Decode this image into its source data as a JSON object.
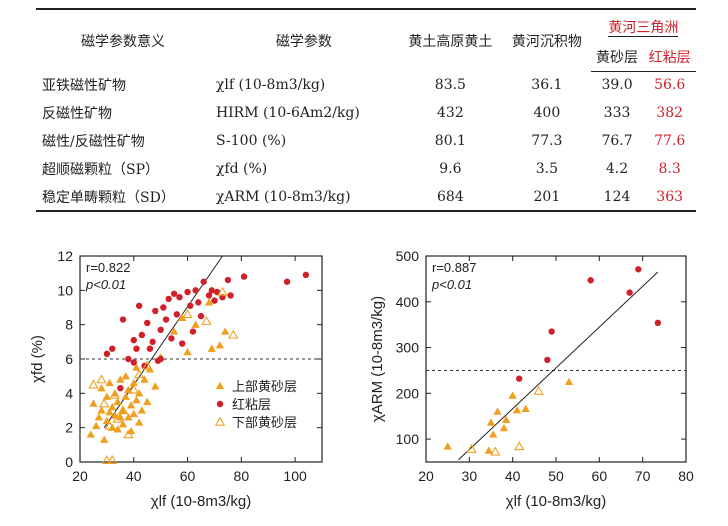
{
  "table": {
    "headers": {
      "meaning": "磁学参数意义",
      "param": "磁学参数",
      "loess": "黄土高原黄土",
      "river": "黄河沉积物",
      "delta": "黄河三角洲",
      "sand": "黄砂层",
      "clay": "红粘层"
    },
    "rows": [
      {
        "meaning": "亚铁磁性矿物",
        "param": "χlf (10-8m3/kg)",
        "loess": "83.5",
        "river": "36.1",
        "sand": "39.0",
        "clay": "56.6"
      },
      {
        "meaning": "反磁性矿物",
        "param": "HIRM (10-6Am2/kg)",
        "loess": "432",
        "river": "400",
        "sand": "333",
        "clay": "382"
      },
      {
        "meaning": "磁性/反磁性矿物",
        "param": "S-100 (%)",
        "loess": "80.1",
        "river": "77.3",
        "sand": "76.7",
        "clay": "77.6"
      },
      {
        "meaning": "超顺磁颗粒（SP）",
        "param": "χfd (%)",
        "loess": "9.6",
        "river": "3.5",
        "sand": "4.2",
        "clay": "8.3"
      },
      {
        "meaning": "稳定单畴颗粒（SD）",
        "param": "χARM (10-8m3/kg)",
        "loess": "684",
        "river": "201",
        "sand": "124",
        "clay": "363"
      }
    ],
    "colors": {
      "highlight": "#d0202a"
    }
  },
  "chart_data": [
    {
      "type": "scatter",
      "xlabel": "χlf (10-8m3/kg)",
      "ylabel": "χfd (%)",
      "xlim": [
        20,
        110
      ],
      "ylim": [
        0,
        12
      ],
      "xticks": [
        "20",
        "40",
        "60",
        "80",
        "100"
      ],
      "yticks": [
        "0",
        "2",
        "4",
        "6",
        "8",
        "10",
        "12"
      ],
      "annotations": [
        "r=0.822",
        "p<0.01"
      ],
      "reference_line": {
        "y": 6,
        "style": "dashed"
      },
      "trend_line": [
        [
          29,
          2.0
        ],
        [
          73,
          12.0
        ]
      ],
      "legend_position": "lower-right",
      "series": [
        {
          "name": "上部黄砂层",
          "marker": "triangle-filled",
          "color": "#f0a020",
          "points": [
            [
              24,
              1.6
            ],
            [
              25,
              3.4
            ],
            [
              26,
              2.1
            ],
            [
              27,
              2.6
            ],
            [
              28,
              3.0
            ],
            [
              28,
              4.3
            ],
            [
              29,
              1.3
            ],
            [
              30,
              2.4
            ],
            [
              30,
              3.8
            ],
            [
              31,
              2.9
            ],
            [
              31,
              4.6
            ],
            [
              32,
              2.0
            ],
            [
              32,
              3.2
            ],
            [
              33,
              2.7
            ],
            [
              33,
              4.0
            ],
            [
              34,
              1.9
            ],
            [
              34,
              3.5
            ],
            [
              35,
              2.6
            ],
            [
              35,
              4.8
            ],
            [
              36,
              3.0
            ],
            [
              36,
              2.2
            ],
            [
              37,
              3.8
            ],
            [
              37,
              5.0
            ],
            [
              38,
              2.6
            ],
            [
              38,
              4.2
            ],
            [
              39,
              3.3
            ],
            [
              39,
              1.8
            ],
            [
              40,
              2.8
            ],
            [
              40,
              4.6
            ],
            [
              41,
              3.6
            ],
            [
              41,
              5.5
            ],
            [
              42,
              2.3
            ],
            [
              42,
              4.0
            ],
            [
              43,
              3.0
            ],
            [
              44,
              4.8
            ],
            [
              45,
              3.5
            ],
            [
              46,
              5.4
            ],
            [
              48,
              4.4
            ],
            [
              50,
              6.1
            ],
            [
              55,
              7.6
            ],
            [
              58,
              8.4
            ],
            [
              60,
              6.4
            ],
            [
              63,
              8.0
            ],
            [
              68,
              9.3
            ],
            [
              69,
              6.6
            ],
            [
              72,
              6.8
            ],
            [
              74,
              7.6
            ]
          ]
        },
        {
          "name": "红粘层",
          "marker": "circle-filled",
          "color": "#d0202a",
          "points": [
            [
              30,
              6.3
            ],
            [
              32,
              6.6
            ],
            [
              35,
              4.3
            ],
            [
              36,
              8.3
            ],
            [
              38,
              6.0
            ],
            [
              40,
              5.8
            ],
            [
              40,
              7.1
            ],
            [
              41,
              6.6
            ],
            [
              42,
              9.1
            ],
            [
              43,
              7.4
            ],
            [
              44,
              5.6
            ],
            [
              45,
              8.1
            ],
            [
              46,
              6.6
            ],
            [
              47,
              7.0
            ],
            [
              48,
              8.8
            ],
            [
              49,
              5.9
            ],
            [
              50,
              7.7
            ],
            [
              50,
              6.0
            ],
            [
              51,
              9.0
            ],
            [
              52,
              8.3
            ],
            [
              53,
              9.5
            ],
            [
              54,
              7.2
            ],
            [
              55,
              9.8
            ],
            [
              56,
              8.6
            ],
            [
              57,
              9.6
            ],
            [
              58,
              6.9
            ],
            [
              60,
              9.9
            ],
            [
              61,
              9.1
            ],
            [
              62,
              7.6
            ],
            [
              63,
              10.0
            ],
            [
              64,
              9.3
            ],
            [
              65,
              8.5
            ],
            [
              66,
              10.5
            ],
            [
              68,
              9.7
            ],
            [
              69,
              10.0
            ],
            [
              70,
              9.4
            ],
            [
              71,
              9.9
            ],
            [
              73,
              9.6
            ],
            [
              75,
              10.6
            ],
            [
              76,
              9.7
            ],
            [
              81,
              10.8
            ],
            [
              97,
              10.5
            ],
            [
              104,
              10.9
            ]
          ]
        },
        {
          "name": "下部黄砂层",
          "marker": "triangle-open",
          "color": "#f0a020",
          "points": [
            [
              25,
              4.5
            ],
            [
              28,
              4.8
            ],
            [
              29,
              3.4
            ],
            [
              30,
              0.1
            ],
            [
              31,
              2.1
            ],
            [
              32,
              0.1
            ],
            [
              33,
              3.9
            ],
            [
              34,
              2.5
            ],
            [
              36,
              3.0
            ],
            [
              38,
              1.6
            ],
            [
              40,
              4.2
            ],
            [
              42,
              5.1
            ],
            [
              45,
              5.6
            ],
            [
              60,
              8.6
            ],
            [
              67,
              8.2
            ],
            [
              77,
              7.4
            ],
            [
              73,
              9.9
            ]
          ]
        }
      ]
    },
    {
      "type": "scatter",
      "xlabel": "χlf (10-8m3/kg)",
      "ylabel": "χARM (10-8m3/kg)",
      "xlim": [
        20,
        80
      ],
      "ylim": [
        50,
        500
      ],
      "xticks": [
        "20",
        "30",
        "40",
        "50",
        "60",
        "70",
        "80"
      ],
      "yticks": [
        "100",
        "200",
        "300",
        "400",
        "500"
      ],
      "annotations": [
        "r=0.887",
        "p<0.01"
      ],
      "reference_line": {
        "y": 250,
        "style": "dashed"
      },
      "trend_line": [
        [
          27.5,
          55
        ],
        [
          73.5,
          465
        ]
      ],
      "series": [
        {
          "name": "上部黄砂层",
          "marker": "triangle-filled",
          "color": "#f0a020",
          "points": [
            [
              25,
              84
            ],
            [
              34.5,
              75
            ],
            [
              35,
              136
            ],
            [
              35.5,
              110
            ],
            [
              36.5,
              160
            ],
            [
              38,
              124
            ],
            [
              38.5,
              142
            ],
            [
              40,
              195
            ],
            [
              41,
              163
            ],
            [
              43,
              166
            ],
            [
              53,
              225
            ]
          ]
        },
        {
          "name": "红粘层",
          "marker": "circle-filled",
          "color": "#d0202a",
          "points": [
            [
              41.5,
              232
            ],
            [
              48,
              273
            ],
            [
              49,
              335
            ],
            [
              58,
              447
            ],
            [
              67,
              420
            ],
            [
              69,
              471
            ],
            [
              73.5,
              354
            ]
          ]
        },
        {
          "name": "下部黄砂层",
          "marker": "triangle-open",
          "color": "#f0a020",
          "points": [
            [
              30.5,
              78
            ],
            [
              36,
              72
            ],
            [
              41.5,
              84
            ],
            [
              46,
              205
            ]
          ]
        }
      ]
    }
  ]
}
